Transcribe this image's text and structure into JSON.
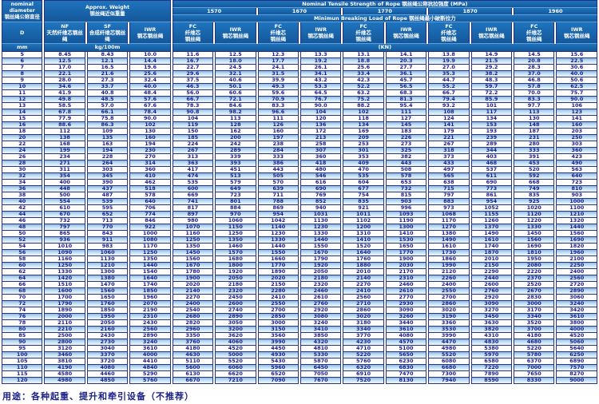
{
  "table": {
    "corner": "nominal\ndiameter\n钢丝绳公称直径",
    "approx_weight": "Approx. Weight\n钢丝绳近似重量",
    "tensile_title": "Nominal  Tensile  Strength  of  Rope  钢丝绳公称抗拉强度  (MPa)",
    "breaking_title": "Minimun  Breaking  Load  of  Rope  钢丝绳最小破断拉力",
    "strengths": [
      "1570",
      "1670",
      "1770",
      "1870",
      "1960"
    ],
    "col_headers": {
      "d": "D",
      "nf": "NF\n天然纤维芯钢丝绳",
      "sf": "SF\n合成纤维芯钢丝绳",
      "iwr_weight": "IWR\n钢芯钢丝绳",
      "fc": "FC\n纤维芯\n钢丝绳",
      "iwr": "IWR\n钢芯钢丝绳"
    },
    "units": {
      "mm": "mm",
      "kg": "kg/100m",
      "kn": "(KN)"
    },
    "rows": [
      [
        "5",
        "8.45",
        "8.43",
        "10.0",
        "11.6",
        "12.5",
        "12.3",
        "13.3",
        "13.1",
        "14.1",
        "13.8",
        "14.9",
        "14.5",
        "15.6"
      ],
      [
        "6",
        "12.5",
        "12.1",
        "14.4",
        "16.7",
        "18.0",
        "17.7",
        "19.2",
        "18.8",
        "20.3",
        "19.9",
        "21.5",
        "20.8",
        "22.5"
      ],
      [
        "7",
        "17.0",
        "16.5",
        "19.6",
        "22.7",
        "24.5",
        "24.1",
        "26.1",
        "25.6",
        "27.7",
        "27.0",
        "29.2",
        "28.3",
        "30.6"
      ],
      [
        "8",
        "22.1",
        "21.6",
        "25.6",
        "29.6",
        "32.1",
        "31.5",
        "34.1",
        "33.4",
        "36.1",
        "35.3",
        "38.2",
        "37.0",
        "40.0"
      ],
      [
        "9",
        "28.0",
        "27.3",
        "32.4",
        "37.5",
        "40.6",
        "39.9",
        "43.2",
        "42.3",
        "45.7",
        "44.7",
        "48.3",
        "46.8",
        "50.6"
      ],
      [
        "10",
        "34.6",
        "33.7",
        "40.0",
        "46.3",
        "50.1",
        "49.3",
        "53.3",
        "52.2",
        "56.5",
        "55.2",
        "59.7",
        "57.8",
        "62.5"
      ],
      [
        "11",
        "41.9",
        "40.8",
        "48.4",
        "56.0",
        "60.6",
        "59.6",
        "64.5",
        "63.2",
        "68.3",
        "66.7",
        "72.2",
        "70.0",
        "75.7"
      ],
      [
        "12",
        "49.8",
        "48.5",
        "57.6",
        "66.7",
        "72.1",
        "70.9",
        "76.7",
        "75.2",
        "81.3",
        "79.4",
        "85.9",
        "83.3",
        "90.0"
      ],
      [
        "13",
        "58.5",
        "57.0",
        "67.6",
        "78.3",
        "84.6",
        "83.3",
        "90.0",
        "88.2",
        "95.4",
        "93.2",
        "101",
        "97.7",
        "106"
      ],
      [
        "14",
        "67.8",
        "66.1",
        "78.4",
        "90.8",
        "98.2",
        "96.6",
        "104",
        "102",
        "111",
        "108",
        "117",
        "113",
        "123"
      ],
      [
        "15",
        "77.9",
        "75.8",
        "90.0",
        "104",
        "113",
        "111",
        "120",
        "118",
        "127",
        "124",
        "134",
        "130",
        "141"
      ],
      [
        "16",
        "88.6",
        "86.3",
        "102",
        "119",
        "128",
        "126",
        "136",
        "134",
        "145",
        "141",
        "153",
        "148",
        "160"
      ],
      [
        "18",
        "112",
        "109",
        "130",
        "150",
        "162",
        "160",
        "172",
        "169",
        "183",
        "179",
        "193",
        "187",
        "203"
      ],
      [
        "20",
        "138",
        "135",
        "160",
        "185",
        "200",
        "197",
        "213",
        "209",
        "226",
        "221",
        "239",
        "231",
        "250"
      ],
      [
        "22",
        "168",
        "163",
        "194",
        "224",
        "242",
        "238",
        "258",
        "253",
        "273",
        "267",
        "289",
        "280",
        "303"
      ],
      [
        "24",
        "199",
        "194",
        "230",
        "267",
        "289",
        "284",
        "307",
        "301",
        "325",
        "318",
        "344",
        "333",
        "360"
      ],
      [
        "26",
        "234",
        "228",
        "270",
        "313",
        "339",
        "333",
        "360",
        "353",
        "382",
        "373",
        "403",
        "391",
        "423"
      ],
      [
        "28",
        "271",
        "264",
        "314",
        "363",
        "393",
        "386",
        "418",
        "409",
        "443",
        "433",
        "468",
        "453",
        "490"
      ],
      [
        "30",
        "311",
        "303",
        "360",
        "417",
        "451",
        "443",
        "480",
        "470",
        "508",
        "497",
        "537",
        "520",
        "563"
      ],
      [
        "32",
        "354",
        "345",
        "410",
        "474",
        "513",
        "505",
        "546",
        "535",
        "578",
        "565",
        "611",
        "592",
        "640"
      ],
      [
        "34",
        "400",
        "390",
        "462",
        "535",
        "579",
        "570",
        "616",
        "604",
        "653",
        "638",
        "690",
        "668",
        "723"
      ],
      [
        "36",
        "448",
        "437",
        "518",
        "600",
        "649",
        "639",
        "690",
        "677",
        "732",
        "715",
        "773",
        "749",
        "810"
      ],
      [
        "38",
        "500",
        "487",
        "578",
        "669",
        "723",
        "711",
        "769",
        "754",
        "815",
        "797",
        "861",
        "835",
        "903"
      ],
      [
        "40",
        "554",
        "539",
        "640",
        "741",
        "801",
        "788",
        "852",
        "835",
        "903",
        "883",
        "954",
        "925",
        "1000"
      ],
      [
        "42",
        "610",
        "595",
        "706",
        "817",
        "884",
        "869",
        "940",
        "921",
        "996",
        "973",
        "1052",
        "1020",
        "1100"
      ],
      [
        "44",
        "670",
        "652",
        "774",
        "897",
        "970",
        "954",
        "1031",
        "1011",
        "1093",
        "1068",
        "1155",
        "1120",
        "1210"
      ],
      [
        "46",
        "732",
        "713",
        "846",
        "980",
        "1060",
        "1042",
        "1130",
        "1102",
        "1190",
        "1170",
        "1260",
        "1220",
        "1320"
      ],
      [
        "48",
        "797",
        "770",
        "922",
        "1070",
        "1150",
        "1140",
        "1230",
        "1200",
        "1300",
        "1270",
        "1370",
        "1330",
        "1440"
      ],
      [
        "50",
        "865",
        "843",
        "1000",
        "1160",
        "1250",
        "1230",
        "1330",
        "1310",
        "1410",
        "1380",
        "1490",
        "1450",
        "1560"
      ],
      [
        "52",
        "936",
        "911",
        "1080",
        "1250",
        "1350",
        "1330",
        "1440",
        "1410",
        "1530",
        "1490",
        "1610",
        "1560",
        "1690"
      ],
      [
        "54",
        "1010",
        "983",
        "1170",
        "1350",
        "1460",
        "1440",
        "1550",
        "1520",
        "1650",
        "1610",
        "1740",
        "1690",
        "1820"
      ],
      [
        "56",
        "1090",
        "1060",
        "1250",
        "1450",
        "1570",
        "1550",
        "1670",
        "1640",
        "1770",
        "1730",
        "1870",
        "1810",
        "1960"
      ],
      [
        "58",
        "1160",
        "1130",
        "1350",
        "1560",
        "1680",
        "1660",
        "1790",
        "1760",
        "1900",
        "1860",
        "2010",
        "1950",
        "2100"
      ],
      [
        "60",
        "1250",
        "1210",
        "1440",
        "1670",
        "1800",
        "1770",
        "1920",
        "1880",
        "2030",
        "1990",
        "2150",
        "2080",
        "2250"
      ],
      [
        "62",
        "1330",
        "1300",
        "1540",
        "1780",
        "1920",
        "1890",
        "2050",
        "2010",
        "2170",
        "2120",
        "2290",
        "2220",
        "2400"
      ],
      [
        "64",
        "1420",
        "1380",
        "1640",
        "1900",
        "2050",
        "2020",
        "2180",
        "2140",
        "2310",
        "2260",
        "2440",
        "2370",
        "2560"
      ],
      [
        "66",
        "1510",
        "1470",
        "1740",
        "2020",
        "2180",
        "2150",
        "2320",
        "2270",
        "2460",
        "2400",
        "2600",
        "2520",
        "2720"
      ],
      [
        "68",
        "1600",
        "1560",
        "1850",
        "2140",
        "2320",
        "2280",
        "2460",
        "2410",
        "2610",
        "2550",
        "2760",
        "2670",
        "2890"
      ],
      [
        "70",
        "1700",
        "1650",
        "1960",
        "2270",
        "2450",
        "2410",
        "2610",
        "2560",
        "2770",
        "2700",
        "2920",
        "2830",
        "3060"
      ],
      [
        "72",
        "1790",
        "1760",
        "2070",
        "2400",
        "2600",
        "2550",
        "2760",
        "2710",
        "2930",
        "2860",
        "3090",
        "3000",
        "3240"
      ],
      [
        "74",
        "1890",
        "1850",
        "2190",
        "2540",
        "2740",
        "2700",
        "2920",
        "2860",
        "3090",
        "3020",
        "3270",
        "3170",
        "3420"
      ],
      [
        "76",
        "2000",
        "1950",
        "2310",
        "2680",
        "2890",
        "2850",
        "3080",
        "3020",
        "3260",
        "3190",
        "3450",
        "3340",
        "3610"
      ],
      [
        "78",
        "2110",
        "2050",
        "2430",
        "2820",
        "3050",
        "3000",
        "3240",
        "3180",
        "3440",
        "3360",
        "3630",
        "3520",
        "3800"
      ],
      [
        "80",
        "2210",
        "2160",
        "2560",
        "2960",
        "3200",
        "3150",
        "3410",
        "3340",
        "3610",
        "3530",
        "3820",
        "3700",
        "4000"
      ],
      [
        "85",
        "2500",
        "2430",
        "2890",
        "3350",
        "3620",
        "3560",
        "3850",
        "3770",
        "4080",
        "3990",
        "4310",
        "4180",
        "4520"
      ],
      [
        "90",
        "2800",
        "2730",
        "3240",
        "3760",
        "4060",
        "3990",
        "4320",
        "4230",
        "4570",
        "4470",
        "4830",
        "4680",
        "5060"
      ],
      [
        "95",
        "3120",
        "3040",
        "3610",
        "4180",
        "4520",
        "4450",
        "4810",
        "4710",
        "5100",
        "4980",
        "5380",
        "5220",
        "5640"
      ],
      [
        "100",
        "3460",
        "3370",
        "4000",
        "4630",
        "5000",
        "4930",
        "5330",
        "5220",
        "5650",
        "5520",
        "5970",
        "5780",
        "6250"
      ],
      [
        "105",
        "3810",
        "3720",
        "4410",
        "5110",
        "5520",
        "5430",
        "5870",
        "5760",
        "6230",
        "6080",
        "6580",
        "6370",
        "6890"
      ],
      [
        "110",
        "4190",
        "4080",
        "4840",
        "5600",
        "6060",
        "5960",
        "6450",
        "6320",
        "6830",
        "6680",
        "7220",
        "7000",
        "7570"
      ],
      [
        "115",
        "4580",
        "4460",
        "5290",
        "6130",
        "6620",
        "6520",
        "7050",
        "6910",
        "7470",
        "7300",
        "7890",
        "7650",
        "8270"
      ],
      [
        "120",
        "4980",
        "4850",
        "5760",
        "6670",
        "7210",
        "7090",
        "7670",
        "7520",
        "8130",
        "7940",
        "8590",
        "8330",
        "9000"
      ]
    ]
  },
  "footer": "用途：各种起重、提升和牵引设备（不推荐）"
}
